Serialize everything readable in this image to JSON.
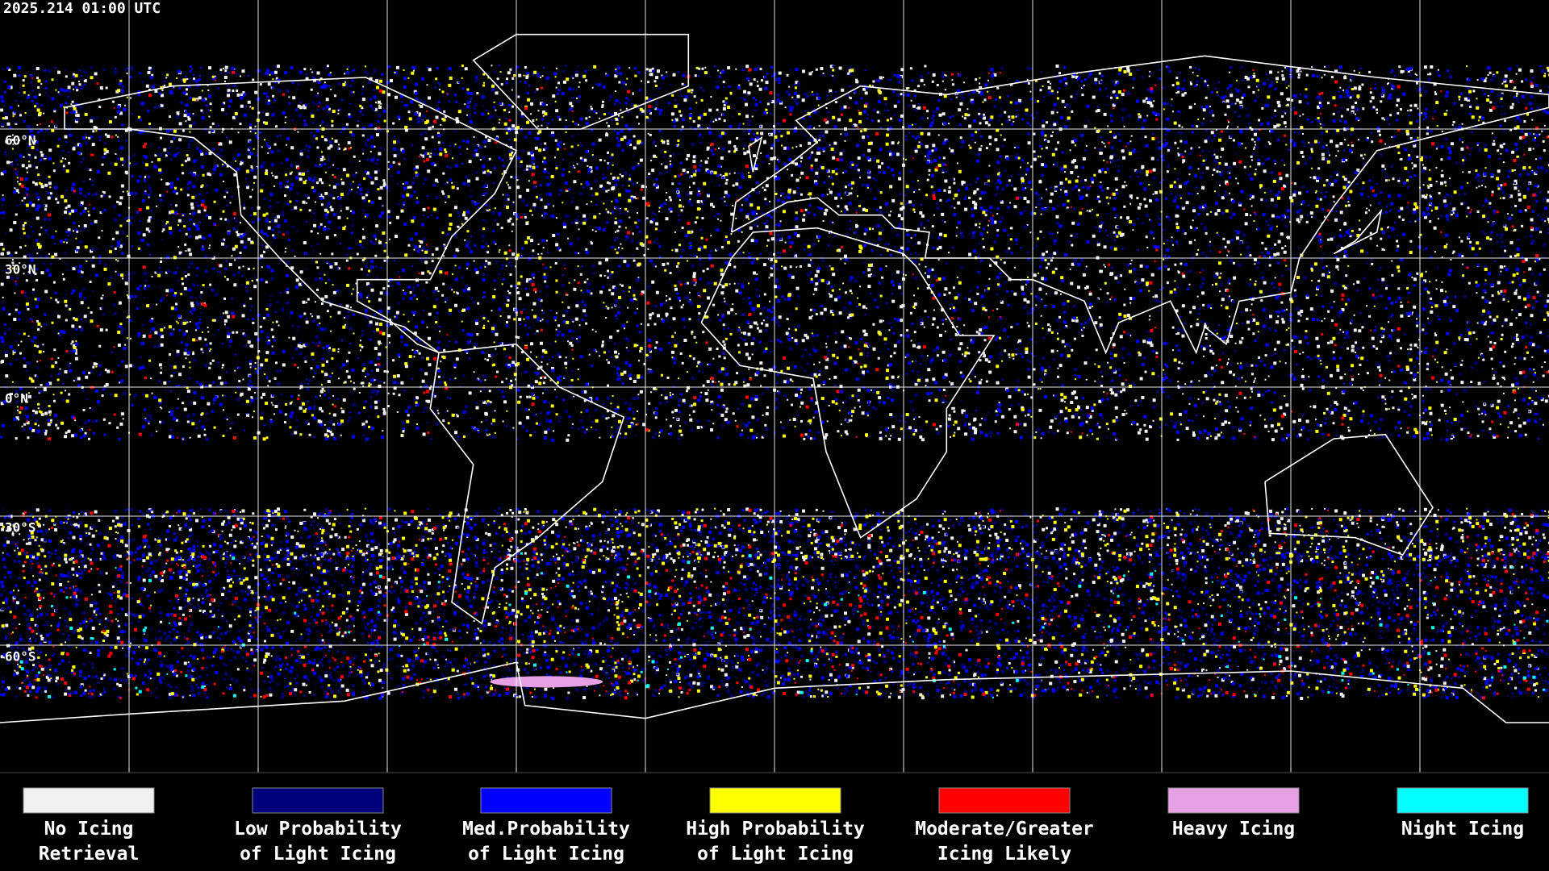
{
  "header": {
    "timestamp": "2025.214 01:00 UTC"
  },
  "map": {
    "latitude_labels": [
      "60°N",
      "30°N",
      "0°N",
      "30°S",
      "60°S"
    ]
  },
  "legend": [
    {
      "label": [
        "No Icing",
        "Retrieval"
      ],
      "color": "#f0f0f0"
    },
    {
      "label": [
        "Low Probability",
        "of Light Icing"
      ],
      "color": "#00007a"
    },
    {
      "label": [
        "Med.Probability",
        "of Light Icing"
      ],
      "color": "#0000ff"
    },
    {
      "label": [
        "High Probability",
        "of Light Icing"
      ],
      "color": "#ffff00"
    },
    {
      "label": [
        "Moderate/Greater",
        "Icing Likely"
      ],
      "color": "#ff0000"
    },
    {
      "label": [
        "Heavy Icing"
      ],
      "color": "#e8a0e4"
    },
    {
      "label": [
        "Night Icing"
      ],
      "color": "#00ffff"
    }
  ]
}
